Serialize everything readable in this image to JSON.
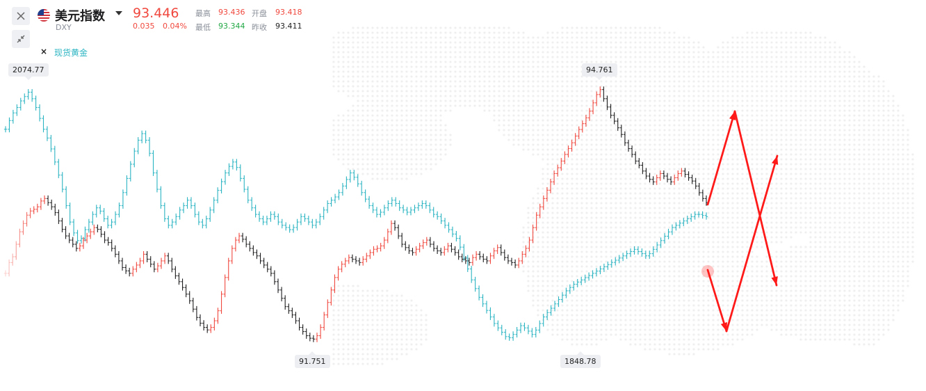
{
  "header": {
    "title": "美元指数",
    "symbol": "DXY",
    "price": "93.446",
    "change": "0.035",
    "change_pct": "0.04%",
    "high_label": "最高",
    "high": "93.436",
    "low_label": "最低",
    "low": "93.344",
    "open_label": "开盘",
    "open": "93.418",
    "prev_close_label": "昨收",
    "prev_close": "93.411"
  },
  "legend": {
    "remove_symbol": "×",
    "overlay_name": "现货黄金"
  },
  "icons": {
    "close": "close-icon",
    "collapse": "collapse-icon",
    "flag": "us-flag-icon",
    "dropdown": "caret-down-icon"
  },
  "colors": {
    "up": "#f0483e",
    "down": "#1d1d1f",
    "low_value": "#22a845",
    "overlay": "#2bb4c2",
    "arrow": "#ff1a1a"
  },
  "chart_data": {
    "type": "ohlc",
    "series": [
      {
        "name": "美元指数",
        "style": "ohlc",
        "up_color": "#f0483e",
        "down_color": "#1d1d1f",
        "max": 94.761,
        "min": 91.751,
        "closes": [
          92.55,
          92.68,
          92.75,
          92.9,
          93.05,
          93.15,
          93.25,
          93.3,
          93.32,
          93.35,
          93.42,
          93.45,
          93.4,
          93.35,
          93.28,
          93.18,
          93.08,
          93.0,
          92.95,
          92.9,
          92.85,
          92.88,
          92.95,
          93.0,
          93.05,
          93.1,
          93.08,
          93.02,
          92.95,
          92.92,
          92.85,
          92.78,
          92.7,
          92.62,
          92.58,
          92.55,
          92.6,
          92.65,
          92.7,
          92.78,
          92.72,
          92.66,
          92.6,
          92.64,
          92.7,
          92.76,
          92.7,
          92.6,
          92.52,
          92.45,
          92.38,
          92.3,
          92.22,
          92.12,
          92.02,
          91.95,
          91.9,
          91.87,
          91.9,
          91.98,
          92.1,
          92.3,
          92.5,
          92.7,
          92.85,
          92.95,
          93.0,
          92.96,
          92.9,
          92.85,
          92.8,
          92.76,
          92.7,
          92.65,
          92.6,
          92.55,
          92.45,
          92.35,
          92.25,
          92.15,
          92.1,
          92.05,
          91.98,
          91.9,
          91.85,
          91.8,
          91.77,
          91.76,
          91.8,
          91.9,
          92.05,
          92.2,
          92.35,
          92.5,
          92.6,
          92.66,
          92.7,
          92.74,
          92.72,
          92.7,
          92.68,
          92.72,
          92.76,
          92.8,
          92.84,
          92.85,
          92.88,
          92.95,
          93.05,
          93.15,
          93.1,
          93.0,
          92.9,
          92.86,
          92.82,
          92.8,
          92.84,
          92.88,
          92.92,
          92.95,
          92.9,
          92.85,
          92.82,
          92.8,
          92.84,
          92.88,
          92.84,
          92.8,
          92.75,
          92.72,
          92.7,
          92.68,
          92.74,
          92.78,
          92.75,
          92.72,
          92.7,
          92.76,
          92.82,
          92.86,
          92.8,
          92.74,
          92.7,
          92.68,
          92.65,
          92.7,
          92.78,
          92.85,
          92.95,
          93.1,
          93.25,
          93.35,
          93.45,
          93.55,
          93.65,
          93.75,
          93.82,
          93.9,
          93.98,
          94.05,
          94.12,
          94.2,
          94.28,
          94.35,
          94.42,
          94.5,
          94.6,
          94.7,
          94.76,
          94.65,
          94.55,
          94.45,
          94.38,
          94.3,
          94.22,
          94.12,
          94.05,
          93.98,
          93.9,
          93.85,
          93.78,
          93.72,
          93.68,
          93.65,
          93.7,
          93.75,
          93.72,
          93.68,
          93.65,
          93.7,
          93.75,
          93.78,
          93.74,
          93.7,
          93.66,
          93.6,
          93.52,
          93.45,
          93.4
        ]
      },
      {
        "name": "现货黄金",
        "style": "ohlc",
        "color": "#2bb4c2",
        "max": 2074.77,
        "min": 1848.78,
        "closes": [
          2040,
          2048,
          2055,
          2060,
          2066,
          2070,
          2074,
          2068,
          2060,
          2050,
          2040,
          2032,
          2022,
          2010,
          1998,
          1985,
          1970,
          1955,
          1945,
          1938,
          1940,
          1948,
          1955,
          1962,
          1968,
          1965,
          1958,
          1952,
          1955,
          1962,
          1970,
          1982,
          1995,
          2008,
          2020,
          2030,
          2036,
          2030,
          2018,
          2000,
          1985,
          1970,
          1958,
          1952,
          1955,
          1960,
          1966,
          1970,
          1975,
          1970,
          1962,
          1955,
          1952,
          1958,
          1966,
          1975,
          1984,
          1992,
          2000,
          2006,
          2010,
          2005,
          1995,
          1985,
          1975,
          1968,
          1962,
          1958,
          1955,
          1958,
          1962,
          1960,
          1955,
          1952,
          1950,
          1948,
          1950,
          1955,
          1960,
          1958,
          1955,
          1952,
          1955,
          1960,
          1966,
          1972,
          1975,
          1978,
          1982,
          1988,
          1994,
          2000,
          1996,
          1990,
          1982,
          1976,
          1970,
          1966,
          1962,
          1964,
          1968,
          1972,
          1975,
          1972,
          1968,
          1966,
          1964,
          1966,
          1968,
          1970,
          1972,
          1970,
          1966,
          1962,
          1960,
          1956,
          1952,
          1948,
          1944,
          1940,
          1932,
          1922,
          1912,
          1902,
          1894,
          1886,
          1880,
          1874,
          1868,
          1862,
          1858,
          1854,
          1850,
          1849,
          1852,
          1856,
          1860,
          1858,
          1855,
          1852,
          1856,
          1862,
          1868,
          1872,
          1876,
          1880,
          1884,
          1888,
          1892,
          1895,
          1898,
          1900,
          1902,
          1904,
          1906,
          1908,
          1910,
          1912,
          1914,
          1916,
          1918,
          1920,
          1922,
          1924,
          1926,
          1928,
          1930,
          1928,
          1926,
          1924,
          1926,
          1930,
          1934,
          1938,
          1942,
          1946,
          1950,
          1952,
          1954,
          1956,
          1958,
          1960,
          1962,
          1962,
          1961,
          1960
        ]
      }
    ],
    "annotations": {
      "dxy_high": "94.761",
      "dxy_low": "91.751",
      "gold_high": "2074.77",
      "gold_low": "1848.78"
    },
    "legend_position": "top-left"
  }
}
